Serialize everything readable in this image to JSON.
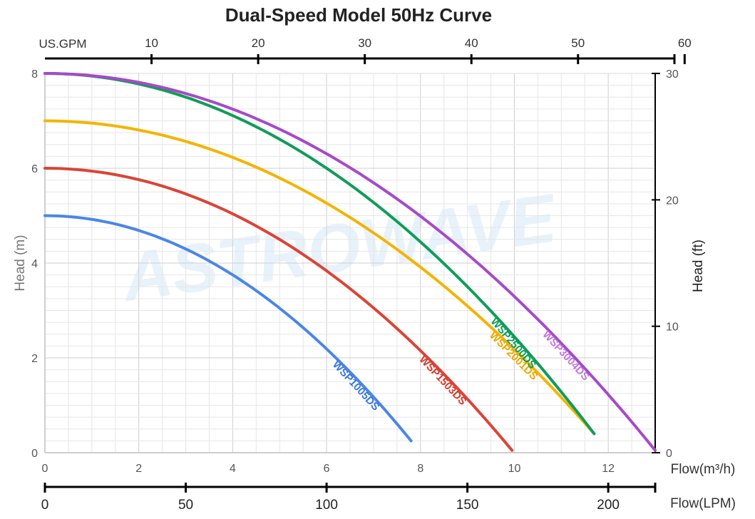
{
  "chart_data": {
    "type": "line",
    "title": "Dual-Speed Model 50Hz Curve",
    "xlabel": "Flow(m³/h)",
    "ylabel": "Head (m)",
    "y2label": "Head (ft)",
    "top_axis_label": "US.GPM",
    "lpm_axis_label": "Flow(LPM)",
    "watermark": "ASTROWAVE",
    "xlim": [
      0,
      13
    ],
    "ylim": [
      0,
      8
    ],
    "y2lim": [
      0,
      30
    ],
    "grid": true,
    "x_ticks": [
      "0",
      "2",
      "4",
      "6",
      "8",
      "10",
      "12"
    ],
    "y_ticks": [
      "0",
      "2",
      "4",
      "6",
      "8"
    ],
    "y2_ticks": [
      "0",
      "10",
      "20",
      "30"
    ],
    "gpm_ticks": [
      "10",
      "20",
      "30",
      "40",
      "50",
      "60"
    ],
    "lpm_ticks": [
      "0",
      "50",
      "100",
      "150",
      "200"
    ],
    "series": [
      {
        "name": "WSP1005DS",
        "color": "#4a86e8",
        "label_color": "#3b78d8",
        "label": "WSP1005DS",
        "shutoff_head": 5.0,
        "max_flow": 7.8,
        "end_head": 0.25
      },
      {
        "name": "WSP1503DS",
        "color": "#db4437",
        "label_color": "#d33a2c",
        "label": "WSP1503DS",
        "shutoff_head": 6.0,
        "max_flow": 9.95,
        "end_head": 0.05
      },
      {
        "name": "WSP2001DS",
        "color": "#f4b400",
        "label_color": "#eda600",
        "label": "WSP2001DS",
        "shutoff_head": 7.0,
        "max_flow": 11.7,
        "end_head": 0.4
      },
      {
        "name": "WSP2500DS",
        "color": "#0f9d58",
        "label_color": "#0f9d58",
        "label": "WSP2500DS",
        "shutoff_head": 8.0,
        "max_flow": 11.7,
        "end_head": 0.4
      },
      {
        "name": "WSP3004DS",
        "color": "#a64ac9",
        "label_color": "#c07ad8",
        "label": "WSP3004DS",
        "shutoff_head": 8.0,
        "max_flow": 13.0,
        "end_head": 0.05
      }
    ]
  }
}
